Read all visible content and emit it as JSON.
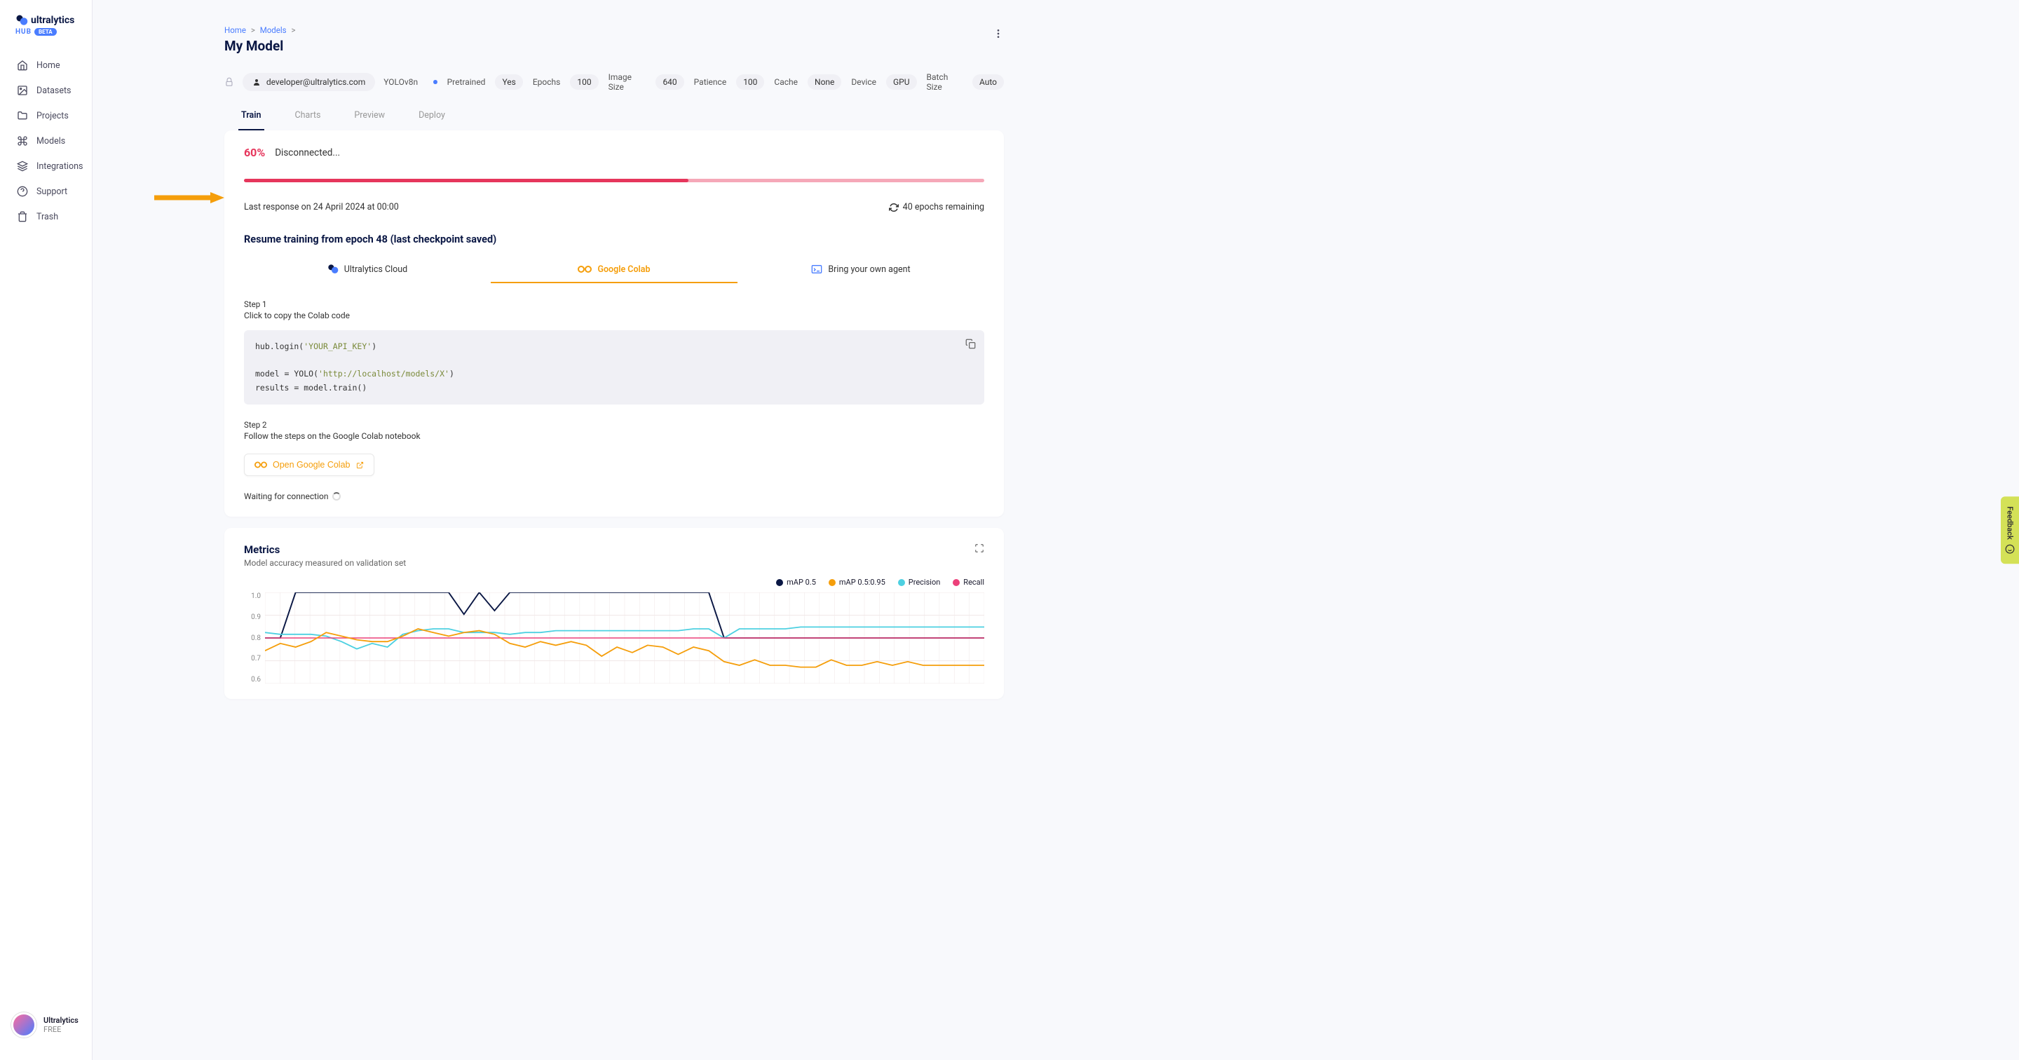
{
  "brand": {
    "name": "ultralytics",
    "hub": "HUB",
    "beta": "BETA"
  },
  "sidebar": {
    "items": [
      {
        "label": "Home"
      },
      {
        "label": "Datasets"
      },
      {
        "label": "Projects"
      },
      {
        "label": "Models"
      },
      {
        "label": "Integrations"
      },
      {
        "label": "Support"
      },
      {
        "label": "Trash"
      }
    ],
    "tier": {
      "name": "Ultralytics",
      "plan": "FREE"
    }
  },
  "breadcrumb": {
    "home": "Home",
    "models": "Models"
  },
  "page_title": "My Model",
  "owner": "developer@ultralytics.com",
  "params": {
    "model_name": "YOLOv8n",
    "pretrained_label": "Pretrained",
    "pretrained": "Yes",
    "epochs_label": "Epochs",
    "epochs": "100",
    "image_size_label": "Image Size",
    "image_size": "640",
    "patience_label": "Patience",
    "patience": "100",
    "cache_label": "Cache",
    "cache": "None",
    "device_label": "Device",
    "device": "GPU",
    "batch_size_label": "Batch Size",
    "batch_size": "Auto"
  },
  "tabs": {
    "train": "Train",
    "charts": "Charts",
    "preview": "Preview",
    "deploy": "Deploy"
  },
  "training": {
    "pct": "60%",
    "pct_value": 60,
    "status": "Disconnected...",
    "progress_color": "#e6365c",
    "progress_bg": "#f5a8b8",
    "last_response": "Last response on 24 April 2024 at 00:00",
    "remaining": "40 epochs remaining",
    "resume_title": "Resume training from epoch 48 (last checkpoint saved)",
    "train_tabs": {
      "cloud": "Ultralytics Cloud",
      "colab": "Google Colab",
      "byoa": "Bring your own agent"
    },
    "step1_label": "Step 1",
    "step1_desc": "Click to copy the Colab code",
    "code": "hub.login('YOUR_API_KEY')\n\nmodel = YOLO('http://localhost/models/X')\nresults = model.train()",
    "step2_label": "Step 2",
    "step2_desc": "Follow the steps on the Google Colab notebook",
    "colab_btn": "Open Google Colab",
    "waiting": "Waiting for connection"
  },
  "metrics": {
    "title": "Metrics",
    "subtitle": "Model accuracy measured on validation set",
    "legend": {
      "map50": {
        "label": "mAP 0.5",
        "color": "#0a1744"
      },
      "map5095": {
        "label": "mAP 0.5:0.95",
        "color": "#f59e0b"
      },
      "precision": {
        "label": "Precision",
        "color": "#4dd0e1"
      },
      "recall": {
        "label": "Recall",
        "color": "#ec407a"
      }
    },
    "chart": {
      "ylim": [
        0.5,
        1.0
      ],
      "yticks": [
        "1.0",
        "0.9",
        "0.8",
        "0.7",
        "0.6"
      ],
      "grid_color": "#f0e8e8",
      "series": {
        "map50": {
          "color": "#0a1744",
          "width": 1.8,
          "data": [
            0.75,
            0.75,
            1.0,
            1.0,
            1.0,
            1.0,
            1.0,
            1.0,
            1.0,
            1.0,
            1.0,
            1.0,
            1.0,
            0.88,
            1.0,
            0.9,
            1.0,
            1.0,
            1.0,
            1.0,
            1.0,
            1.0,
            1.0,
            1.0,
            1.0,
            1.0,
            1.0,
            1.0,
            1.0,
            1.0,
            0.75,
            0.75,
            0.75,
            0.75,
            0.75,
            0.75,
            0.75,
            0.75,
            0.75,
            0.75,
            0.75,
            0.75,
            0.75,
            0.75,
            0.75,
            0.75,
            0.75,
            0.75
          ]
        },
        "precision": {
          "color": "#4dd0e1",
          "width": 1.8,
          "data": [
            0.78,
            0.77,
            0.77,
            0.77,
            0.76,
            0.73,
            0.69,
            0.72,
            0.7,
            0.77,
            0.79,
            0.8,
            0.8,
            0.78,
            0.78,
            0.78,
            0.77,
            0.78,
            0.78,
            0.79,
            0.79,
            0.79,
            0.79,
            0.79,
            0.79,
            0.79,
            0.79,
            0.79,
            0.8,
            0.8,
            0.75,
            0.8,
            0.8,
            0.8,
            0.8,
            0.81,
            0.81,
            0.81,
            0.81,
            0.81,
            0.81,
            0.81,
            0.81,
            0.81,
            0.81,
            0.81,
            0.81,
            0.81
          ]
        },
        "recall": {
          "color": "#ec407a",
          "width": 1.5,
          "data": [
            0.75,
            0.75,
            0.75,
            0.75,
            0.75,
            0.75,
            0.75,
            0.75,
            0.75,
            0.75,
            0.75,
            0.75,
            0.75,
            0.75,
            0.75,
            0.75,
            0.75,
            0.75,
            0.75,
            0.75,
            0.75,
            0.75,
            0.75,
            0.75,
            0.75,
            0.75,
            0.75,
            0.75,
            0.75,
            0.75,
            0.75,
            0.75,
            0.75,
            0.75,
            0.75,
            0.75,
            0.75,
            0.75,
            0.75,
            0.75,
            0.75,
            0.75,
            0.75,
            0.75,
            0.75,
            0.75,
            0.75,
            0.75
          ]
        },
        "map5095": {
          "color": "#f59e0b",
          "width": 1.8,
          "data": [
            0.68,
            0.72,
            0.7,
            0.73,
            0.78,
            0.76,
            0.74,
            0.73,
            0.73,
            0.76,
            0.8,
            0.78,
            0.76,
            0.78,
            0.79,
            0.77,
            0.72,
            0.7,
            0.73,
            0.71,
            0.73,
            0.71,
            0.65,
            0.7,
            0.67,
            0.71,
            0.7,
            0.66,
            0.7,
            0.68,
            0.62,
            0.6,
            0.63,
            0.6,
            0.6,
            0.59,
            0.59,
            0.63,
            0.6,
            0.6,
            0.62,
            0.6,
            0.62,
            0.6,
            0.6,
            0.6,
            0.6,
            0.6
          ]
        }
      }
    }
  },
  "feedback": "Feedback",
  "colors": {
    "navy": "#0a1744",
    "blue_link": "#4a7dff",
    "orange": "#f59e0b",
    "arrow": "#f59e0b"
  }
}
